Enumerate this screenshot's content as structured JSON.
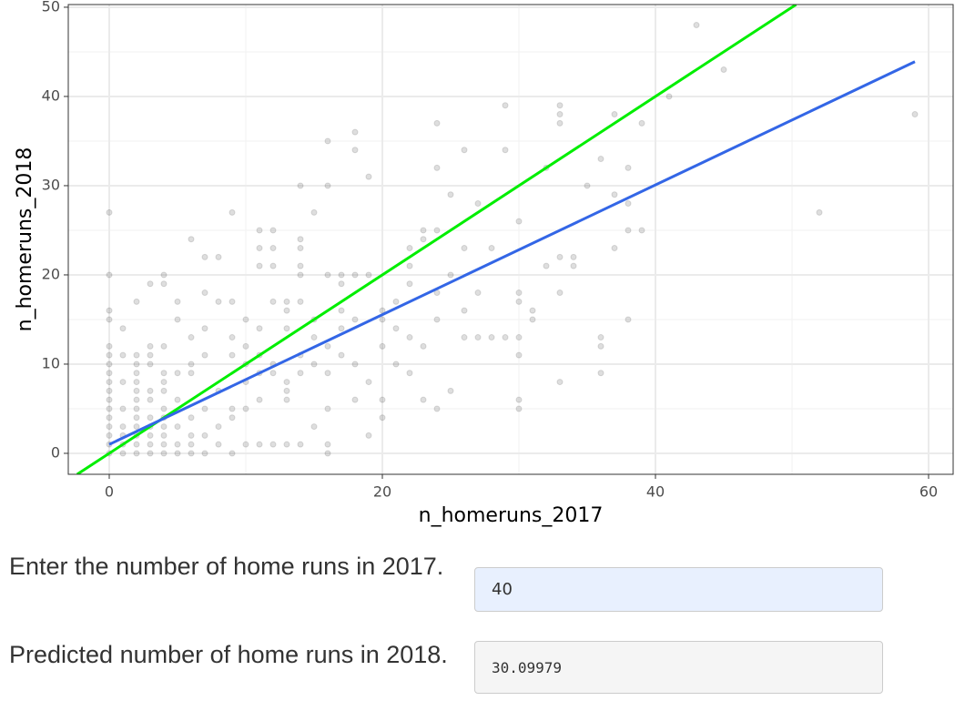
{
  "chart_data": {
    "type": "scatter",
    "x_label": "n_homeruns_2017",
    "y_label": "n_homeruns_2018",
    "x": [
      0,
      0,
      0,
      0,
      0,
      0,
      0,
      0,
      0,
      0,
      0,
      0,
      0,
      0,
      0,
      0,
      0,
      1,
      1,
      1,
      1,
      1,
      1,
      1,
      1,
      2,
      2,
      2,
      2,
      2,
      2,
      2,
      2,
      2,
      2,
      2,
      2,
      2,
      3,
      3,
      3,
      3,
      3,
      3,
      3,
      3,
      3,
      3,
      3,
      4,
      4,
      4,
      4,
      4,
      4,
      4,
      4,
      4,
      4,
      4,
      4,
      5,
      5,
      5,
      5,
      5,
      5,
      5,
      6,
      6,
      6,
      6,
      6,
      6,
      6,
      6,
      7,
      7,
      7,
      7,
      7,
      7,
      7,
      8,
      8,
      8,
      8,
      8,
      9,
      9,
      9,
      9,
      9,
      9,
      9,
      10,
      10,
      10,
      10,
      10,
      10,
      11,
      11,
      11,
      11,
      11,
      11,
      11,
      11,
      12,
      12,
      12,
      12,
      12,
      12,
      12,
      13,
      13,
      13,
      13,
      13,
      13,
      13,
      14,
      14,
      14,
      14,
      14,
      14,
      14,
      14,
      14,
      15,
      15,
      15,
      15,
      15,
      16,
      16,
      16,
      16,
      16,
      16,
      16,
      16,
      17,
      17,
      17,
      17,
      17,
      18,
      18,
      18,
      18,
      18,
      18,
      19,
      19,
      19,
      19,
      20,
      20,
      20,
      20,
      20,
      21,
      21,
      21,
      22,
      22,
      22,
      22,
      22,
      23,
      23,
      23,
      23,
      24,
      24,
      24,
      24,
      24,
      24,
      25,
      25,
      25,
      26,
      26,
      26,
      26,
      27,
      27,
      27,
      28,
      28,
      29,
      29,
      29,
      30,
      30,
      30,
      30,
      30,
      30,
      30,
      31,
      31,
      32,
      32,
      33,
      33,
      33,
      33,
      33,
      33,
      34,
      34,
      35,
      36,
      36,
      36,
      36,
      37,
      37,
      37,
      38,
      38,
      38,
      38,
      39,
      39,
      41,
      43,
      45,
      52,
      59
    ],
    "values": [
      27,
      20,
      16,
      15,
      12,
      11,
      10,
      9,
      8,
      7,
      6,
      5,
      4,
      3,
      2,
      1,
      0,
      14,
      11,
      8,
      5,
      3,
      2,
      1,
      0,
      17,
      11,
      10,
      9,
      8,
      7,
      6,
      5,
      4,
      3,
      2,
      1,
      0,
      19,
      12,
      11,
      10,
      7,
      6,
      4,
      3,
      2,
      1,
      0,
      20,
      19,
      12,
      9,
      8,
      7,
      5,
      4,
      3,
      2,
      1,
      0,
      17,
      15,
      9,
      6,
      3,
      1,
      0,
      24,
      13,
      10,
      9,
      4,
      2,
      1,
      0,
      22,
      18,
      14,
      11,
      5,
      2,
      0,
      22,
      17,
      7,
      3,
      1,
      27,
      17,
      13,
      11,
      5,
      4,
      0,
      15,
      12,
      10,
      8,
      5,
      1,
      25,
      23,
      21,
      14,
      11,
      9,
      6,
      1,
      25,
      23,
      21,
      17,
      10,
      9,
      1,
      17,
      16,
      14,
      8,
      7,
      6,
      1,
      30,
      24,
      23,
      21,
      20,
      17,
      11,
      9,
      1,
      27,
      15,
      13,
      10,
      3,
      35,
      30,
      20,
      12,
      9,
      5,
      1,
      0,
      20,
      19,
      16,
      14,
      11,
      36,
      34,
      20,
      15,
      10,
      6,
      31,
      20,
      8,
      2,
      16,
      15,
      12,
      6,
      4,
      17,
      14,
      10,
      23,
      21,
      19,
      13,
      9,
      25,
      24,
      12,
      6,
      37,
      32,
      25,
      18,
      15,
      5,
      29,
      20,
      7,
      34,
      23,
      16,
      13,
      28,
      18,
      13,
      23,
      13,
      39,
      34,
      13,
      26,
      18,
      17,
      13,
      11,
      6,
      5,
      16,
      15,
      32,
      21,
      39,
      38,
      37,
      22,
      18,
      8,
      22,
      21,
      30,
      33,
      13,
      12,
      9,
      38,
      29,
      23,
      32,
      28,
      25,
      15,
      37,
      25,
      40,
      48,
      43,
      27,
      38
    ],
    "color": "#000000",
    "lines": [
      {
        "color": "#00ee00",
        "x": [
          -2.35,
          50.3
        ],
        "values": [
          -2.35,
          50.3
        ]
      },
      {
        "color": "#3366e6",
        "x": [
          0,
          59
        ],
        "values": [
          1.0,
          43.9
        ]
      }
    ],
    "xlim": [
      -3,
      61.8
    ],
    "ylim": [
      -2.35,
      50.3
    ],
    "xticks": [
      0,
      20,
      40,
      60
    ],
    "yticks": [
      0,
      10,
      20,
      30,
      40,
      50
    ],
    "grid": true
  },
  "form": {
    "input_label": "Enter the number of home runs in 2017.",
    "input_value": "40",
    "output_label": "Predicted number of home runs in 2018.",
    "output_value": "30.09979"
  }
}
